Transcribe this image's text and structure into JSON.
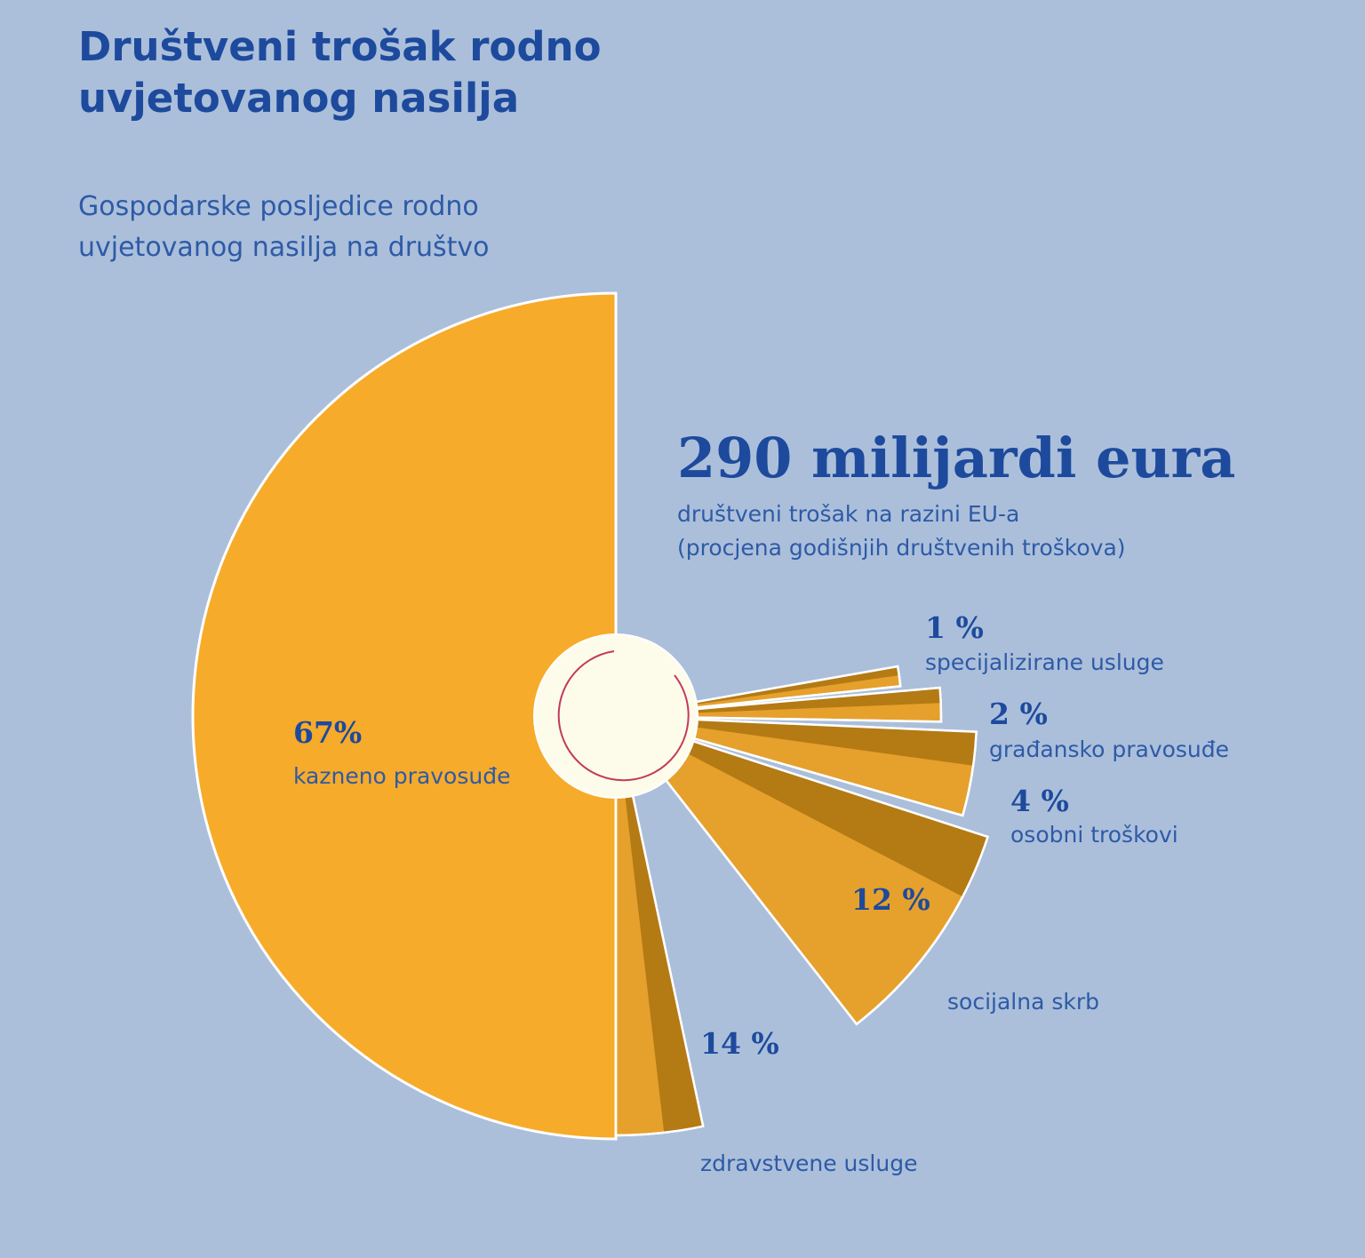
{
  "header": {
    "title": "Društveni trošak rodno uvjetovanog nasilja",
    "subtitle": "Gospodarske posljedice rodno uvjetovanog nasilja na društvo"
  },
  "summary": {
    "value": "290 milijardi eura",
    "description_line1": "društveni trošak na razini EU-a",
    "description_line2": "(procjena godišnjih društvenih troškova)"
  },
  "colors": {
    "background": "#abbfdb",
    "main_slice": "#f7ab2a",
    "slice_fill": "#e6a02c",
    "slice_shadow": "#b47a13",
    "center": "#fdfbea",
    "text_dark": "#1d4a9c",
    "text_light": "#2e5aa6"
  },
  "chart_data": {
    "type": "pie",
    "unit": "%",
    "slices": [
      {
        "value": 67,
        "value_label": "67%",
        "label": "kazneno pravosuđe"
      },
      {
        "value": 14,
        "value_label": "14 %",
        "label": "zdravstvene usluge"
      },
      {
        "value": 12,
        "value_label": "12 %",
        "label": "socijalna skrb"
      },
      {
        "value": 4,
        "value_label": "4 %",
        "label": "osobni troškovi"
      },
      {
        "value": 2,
        "value_label": "2 %",
        "label": "građansko pravosuđe"
      },
      {
        "value": 1,
        "value_label": "1 %",
        "label": "specijalizirane usluge"
      }
    ]
  }
}
